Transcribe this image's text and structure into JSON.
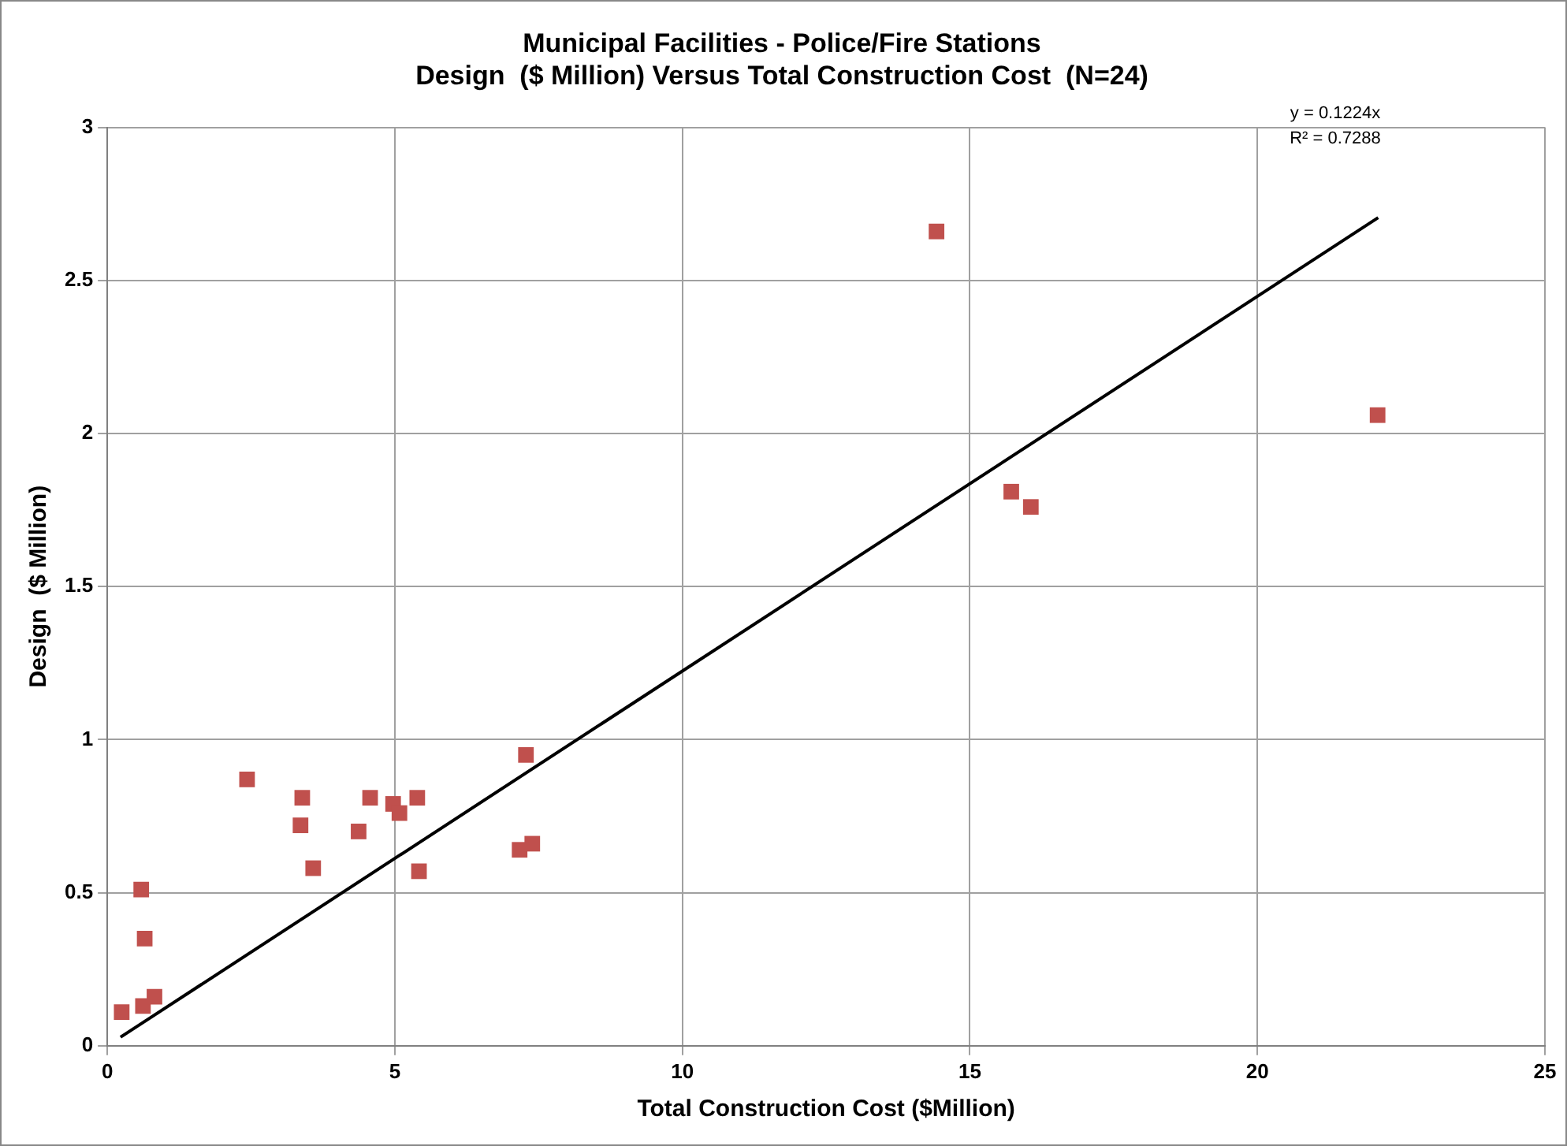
{
  "chart_data": {
    "type": "scatter",
    "title": [
      "Municipal Facilities - Police/Fire Stations",
      "Design  ($ Million) Versus Total Construction Cost  (N=24)"
    ],
    "xlabel": "Total Construction Cost ($Million)",
    "ylabel": "Design  ($ Million)",
    "xlim": [
      0,
      25
    ],
    "xticks": [
      0,
      5,
      10,
      15,
      20,
      25
    ],
    "ylim": [
      0,
      3
    ],
    "yticks": [
      0,
      0.5,
      1,
      1.5,
      2,
      2.5,
      3
    ],
    "grid": true,
    "legend": false,
    "marker": "square",
    "series": [
      {
        "type": "scatter",
        "color": "#c0504d",
        "x": [
          0.25,
          0.62,
          0.82,
          0.65,
          0.59,
          2.43,
          3.39,
          3.36,
          3.58,
          4.37,
          4.57,
          4.97,
          5.08,
          5.39,
          5.42,
          7.28,
          7.17,
          7.39,
          14.42,
          15.72,
          16.06,
          22.09
        ],
        "values": [
          0.11,
          0.13,
          0.16,
          0.35,
          0.51,
          0.87,
          0.81,
          0.72,
          0.58,
          0.7,
          0.81,
          0.79,
          0.76,
          0.81,
          0.57,
          0.95,
          0.64,
          0.66,
          2.66,
          1.81,
          1.76,
          2.06
        ]
      },
      {
        "type": "line",
        "color": "#000000",
        "marker": "none",
        "line_style": "solid",
        "x": [
          0.23,
          22.1
        ],
        "values": [
          0.028,
          2.705
        ]
      }
    ],
    "annotations": [
      "y = 0.1224x",
      "R² = 0.7288"
    ]
  }
}
